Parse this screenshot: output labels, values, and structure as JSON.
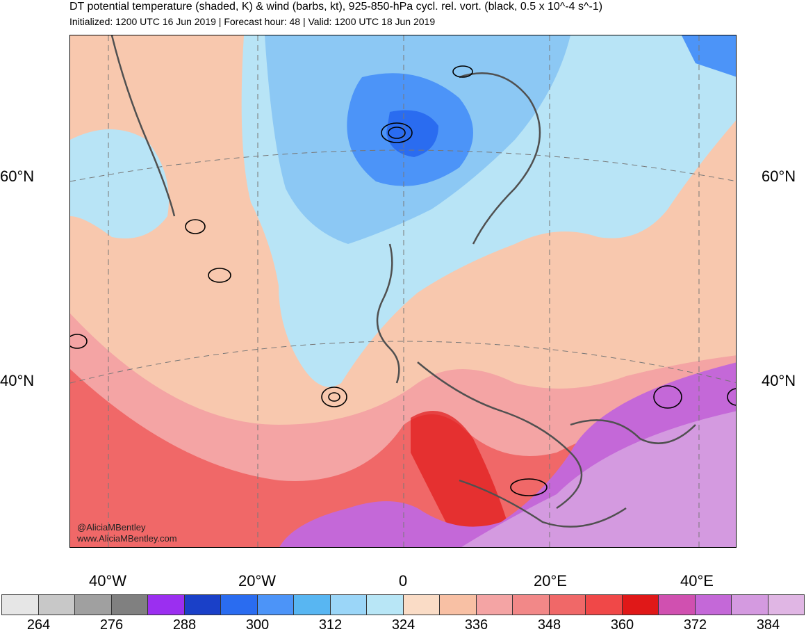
{
  "header": {
    "title": "DT potential temperature (shaded, K) & wind (barbs, kt), 925-850-hPa cycl. rel. vort. (black, 0.5 x 10^-4 s^-1)",
    "subtitle": "Initialized: 1200 UTC 16 Jun 2019 | Forecast hour: 48 | Valid: 1200 UTC 18 Jun 2019"
  },
  "map": {
    "lat_labels": [
      "60°N",
      "40°N"
    ],
    "lon_labels": [
      "40°W",
      "20°W",
      "0",
      "20°E",
      "40°E"
    ],
    "credits": [
      "@AliciaMBentley",
      "www.AliciaMBentley.com"
    ]
  },
  "colorbar": {
    "colors": [
      "#e6e6e6",
      "#c8c8c8",
      "#a0a0a0",
      "#808080",
      "#9b2ff0",
      "#1a40c8",
      "#2a6cf0",
      "#4c94f8",
      "#58b6f2",
      "#9bd6f8",
      "#b8e6f6",
      "#fadcc6",
      "#f8c0a4",
      "#f4a4a4",
      "#f28888",
      "#f06868",
      "#f04848",
      "#e01818",
      "#d050b0",
      "#c468d8",
      "#d49ae0",
      "#e0b6e4"
    ],
    "labels": [
      "264",
      "276",
      "288",
      "300",
      "312",
      "324",
      "336",
      "348",
      "360",
      "372",
      "384"
    ]
  }
}
